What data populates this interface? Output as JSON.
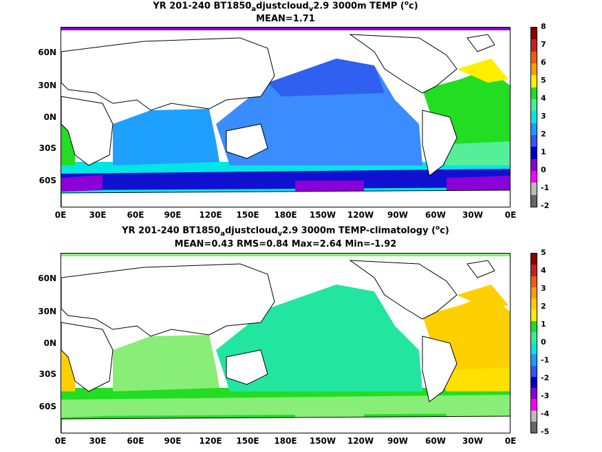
{
  "panels": [
    {
      "title_line1": "YR 201-240 BT1850",
      "sub1": "a",
      "title_mid": "djustcloud",
      "sub2": "v",
      "title_end": "2.9 3000m TEMP (",
      "sup": "o",
      "title_close": "c)",
      "title_line2": "MEAN=1.71",
      "colorbar_labels": [
        "8",
        "7",
        "6",
        "5",
        "4",
        "3",
        "2",
        "1",
        "0",
        "-1",
        "-2"
      ],
      "colorbar_colors": [
        "#8b0000",
        "#c81e1e",
        "#f05a14",
        "#ff9c00",
        "#ffee00",
        "#22dd22",
        "#44ee99",
        "#00e6e6",
        "#1a9cff",
        "#3355ff",
        "#0000cc",
        "#8a00d6",
        "#ff00ff",
        "#bbbbbb",
        "#666666"
      ],
      "ocean_colors": {
        "pacific": "#3a8cff",
        "pacific_north": "#3060f0",
        "indian": "#1ea0ff",
        "southern": "#00e5e5",
        "antarctic": "#1010d0",
        "antarctic_deep": "#8a00d6",
        "atlantic": "#22dd22",
        "atlantic_south": "#55ee99",
        "atlantic_north": "#ffee00"
      }
    },
    {
      "title_line1": "YR 201-240 BT1850",
      "sub1": "a",
      "title_mid": "djustcloud",
      "sub2": "v",
      "title_end": "2.9 3000m TEMP-climatology (",
      "sup": "o",
      "title_close": "c)",
      "title_line2": "MEAN=0.43   RMS=0.84   Max=2.64   Min=-1.92",
      "colorbar_labels": [
        "5",
        "4",
        "3",
        "2",
        "1",
        "0",
        "-1",
        "-2",
        "-3",
        "-4",
        "-5"
      ],
      "colorbar_colors": [
        "#8b0000",
        "#c81e1e",
        "#f05a14",
        "#ff9c00",
        "#ffc800",
        "#ffee00",
        "#22dd22",
        "#33ee99",
        "#00e6e6",
        "#1a9cff",
        "#3355ff",
        "#0000cc",
        "#8a00d6",
        "#ff00ff",
        "#bbbbbb",
        "#666666"
      ],
      "ocean_colors": {
        "pacific": "#22e6a0",
        "pacific_north": "#22e6a0",
        "indian": "#88ee77",
        "southern": "#22dd22",
        "antarctic": "#88ee77",
        "antarctic_deep": "#88ee77",
        "atlantic": "#ffd000",
        "atlantic_south": "#ffe000",
        "atlantic_north": "#ffd000"
      }
    }
  ],
  "y_axis": [
    "60N",
    "30N",
    "0N",
    "30S",
    "60S"
  ],
  "x_axis": [
    "0E",
    "30E",
    "60E",
    "90E",
    "120E",
    "150E",
    "180E",
    "150W",
    "120W",
    "90W",
    "60W",
    "30W",
    "0E"
  ]
}
